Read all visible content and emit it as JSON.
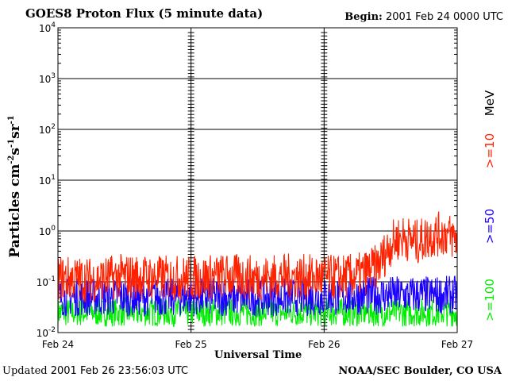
{
  "header": {
    "title": "GOES8 Proton Flux (5 minute data)",
    "begin_label": "Begin:",
    "begin_value": "2001 Feb 24 0000 UTC"
  },
  "footer": {
    "updated_label": "Updated",
    "updated_value": "2001 Feb 26 23:56:03 UTC",
    "credit": "NOAA/SEC Boulder, CO USA"
  },
  "colors": {
    "series_10": "#ff2200",
    "series_50": "#1a00ff",
    "series_100": "#00ee00",
    "unit": "#000000"
  },
  "chart_data": {
    "type": "line",
    "title": "GOES8 Proton Flux (5 minute data)",
    "xlabel": "Universal Time",
    "ylabel": "Particles cm-2s-1sr-1",
    "ylabel_parts": [
      "Particles cm",
      "-2",
      "s",
      "-1",
      "sr",
      "-1"
    ],
    "yscale": "log",
    "ylim": [
      0.01,
      10000
    ],
    "xlim": [
      0,
      3
    ],
    "x_unit": "days since 2001 Feb 24 0000 UTC",
    "x_ticks": [
      {
        "value": 0,
        "label": "Feb 24"
      },
      {
        "value": 1,
        "label": "Feb 25"
      },
      {
        "value": 2,
        "label": "Feb 26"
      },
      {
        "value": 3,
        "label": "Feb 27"
      }
    ],
    "y_ticks": [
      {
        "value": 0.01,
        "base": "10",
        "exp": "-2"
      },
      {
        "value": 0.1,
        "base": "10",
        "exp": "-1"
      },
      {
        "value": 1,
        "base": "10",
        "exp": "0"
      },
      {
        "value": 10,
        "base": "10",
        "exp": "1"
      },
      {
        "value": 100,
        "base": "10",
        "exp": "2"
      },
      {
        "value": 1000,
        "base": "10",
        "exp": "3"
      },
      {
        "value": 10000,
        "base": "10",
        "exp": "4"
      }
    ],
    "grid": true,
    "legend_unit": "MeV",
    "legend_placement": "right",
    "series": [
      {
        "name": ">=10",
        "key": "series_10",
        "x": [
          0,
          0.25,
          0.5,
          0.75,
          1.0,
          1.25,
          1.5,
          1.75,
          2.0,
          2.25,
          2.4,
          2.5,
          2.55,
          2.6,
          2.7,
          2.8,
          2.9,
          3.0
        ],
        "values": [
          0.12,
          0.11,
          0.13,
          0.12,
          0.12,
          0.13,
          0.12,
          0.13,
          0.12,
          0.13,
          0.2,
          0.55,
          0.7,
          0.75,
          0.6,
          0.8,
          0.9,
          0.7
        ]
      },
      {
        "name": ">=50",
        "key": "series_50",
        "x": [
          0,
          0.5,
          1.0,
          1.5,
          2.0,
          2.5,
          3.0
        ],
        "values": [
          0.05,
          0.05,
          0.05,
          0.05,
          0.05,
          0.055,
          0.055
        ]
      },
      {
        "name": ">=100",
        "key": "series_100",
        "x": [
          0,
          0.5,
          1.0,
          1.5,
          2.0,
          2.5,
          3.0
        ],
        "values": [
          0.025,
          0.025,
          0.025,
          0.025,
          0.025,
          0.025,
          0.025
        ]
      }
    ]
  }
}
